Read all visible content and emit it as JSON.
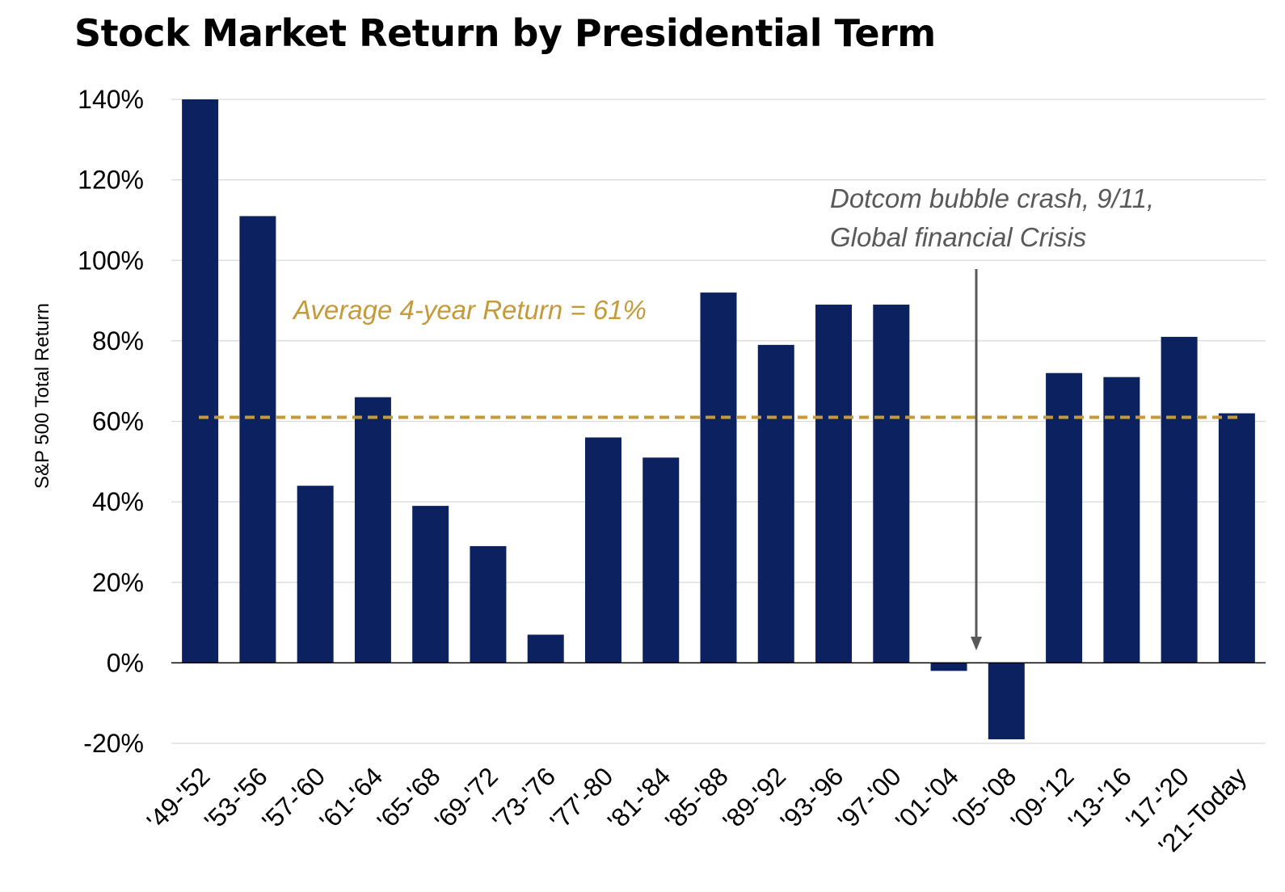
{
  "chart_data": {
    "type": "bar",
    "title": "Stock Market Return by Presidential Term",
    "ylabel": "S&P 500 Total Return",
    "xlabel": "",
    "categories": [
      "'49-'52",
      "'53-'56",
      "'57-'60",
      "'61-'64",
      "'65-'68",
      "'69-'72",
      "'73-'76",
      "'77'-80",
      "'81-'84",
      "'85-'88",
      "'89-'92",
      "'93-'96",
      "'97-'00",
      "'01-'04",
      "'05-'08",
      "'09-'12",
      "'13-'16",
      "'17-'20",
      "'21-Today"
    ],
    "values": [
      140,
      111,
      44,
      66,
      39,
      29,
      7,
      56,
      51,
      92,
      79,
      89,
      89,
      -2,
      -19,
      72,
      71,
      81,
      62
    ],
    "ylim": [
      -20,
      140
    ],
    "yticks": [
      140,
      120,
      100,
      80,
      60,
      40,
      20,
      0,
      -20
    ],
    "ytick_labels": [
      "140%",
      "120%",
      "100%",
      "80%",
      "60%",
      "40%",
      "20%",
      "0%",
      "-20%"
    ],
    "average": {
      "value": 61,
      "label": "Average 4-year Return = 61%",
      "style": "dashed"
    },
    "annotation": {
      "lines": [
        "Dotcom bubble crash, 9/11,",
        "Global financial Crisis"
      ],
      "points_to": "'05-'08"
    },
    "grid": true,
    "legend": "none",
    "colors": {
      "bar": "#0c2160",
      "average": "#c49a3a",
      "gridline": "#d9d9d9",
      "annotation": "#595959"
    }
  }
}
